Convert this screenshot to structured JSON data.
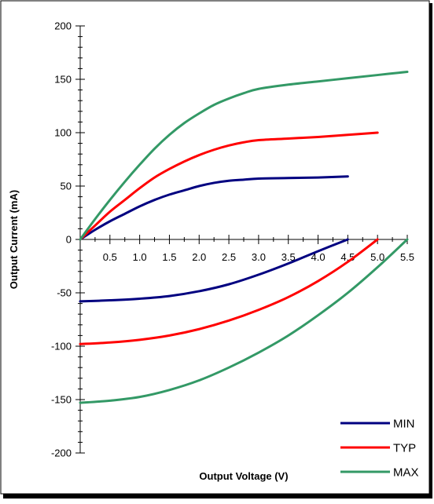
{
  "chart_data": {
    "type": "line",
    "title": "",
    "xlabel": "Output Voltage (V)",
    "ylabel": "Output Current (mA)",
    "xlim": [
      0,
      5.5
    ],
    "ylim": [
      -200,
      200
    ],
    "x_ticks": [
      0.5,
      1.0,
      1.5,
      2.0,
      2.5,
      3.0,
      3.5,
      4.0,
      4.5,
      5.0,
      5.5
    ],
    "x_tick_labels": [
      "0.5",
      "1.0",
      "1.5",
      "2.0",
      "2.5",
      "3.0",
      "3.5",
      "4.0",
      "4.5",
      "5.0",
      "5.5"
    ],
    "y_ticks": [
      200,
      150,
      100,
      50,
      0,
      -50,
      -100,
      -150,
      -200
    ],
    "y_tick_labels": [
      "200",
      "150",
      "100",
      "50",
      "0",
      "-50",
      "-100",
      "-150",
      "-200"
    ],
    "grid": false,
    "legend_position": "bottom-right",
    "series": [
      {
        "name": "MIN",
        "color": "#000080",
        "branches": [
          [
            [
              0,
              0
            ],
            [
              0.25,
              9
            ],
            [
              0.5,
              17
            ],
            [
              0.75,
              24
            ],
            [
              1.0,
              31
            ],
            [
              1.25,
              37
            ],
            [
              1.5,
              42
            ],
            [
              1.75,
              46
            ],
            [
              2.0,
              50
            ],
            [
              2.25,
              53
            ],
            [
              2.5,
              55
            ],
            [
              2.75,
              56
            ],
            [
              3.0,
              57
            ],
            [
              3.5,
              57.5
            ],
            [
              4.0,
              58
            ],
            [
              4.5,
              59
            ]
          ],
          [
            [
              0,
              -58
            ],
            [
              0.5,
              -57
            ],
            [
              1.0,
              -55.5
            ],
            [
              1.5,
              -53
            ],
            [
              2.0,
              -48.5
            ],
            [
              2.5,
              -42
            ],
            [
              3.0,
              -33
            ],
            [
              3.5,
              -22.5
            ],
            [
              4.0,
              -11
            ],
            [
              4.5,
              0
            ]
          ]
        ]
      },
      {
        "name": "TYP",
        "color": "#ff0000",
        "branches": [
          [
            [
              0,
              0
            ],
            [
              0.25,
              13
            ],
            [
              0.5,
              26
            ],
            [
              0.75,
              37
            ],
            [
              1.0,
              48
            ],
            [
              1.25,
              58
            ],
            [
              1.5,
              66
            ],
            [
              1.75,
              73
            ],
            [
              2.0,
              79
            ],
            [
              2.25,
              84
            ],
            [
              2.5,
              88
            ],
            [
              2.75,
              91
            ],
            [
              3.0,
              93
            ],
            [
              3.5,
              94.5
            ],
            [
              4.0,
              96
            ],
            [
              4.5,
              98
            ],
            [
              5.0,
              100
            ]
          ],
          [
            [
              0,
              -98
            ],
            [
              0.5,
              -96.5
            ],
            [
              1.0,
              -94
            ],
            [
              1.5,
              -90
            ],
            [
              2.0,
              -84
            ],
            [
              2.5,
              -76
            ],
            [
              3.0,
              -66
            ],
            [
              3.5,
              -54
            ],
            [
              4.0,
              -39
            ],
            [
              4.5,
              -21
            ],
            [
              5.0,
              0
            ]
          ]
        ]
      },
      {
        "name": "MAX",
        "color": "#339966",
        "branches": [
          [
            [
              0,
              0
            ],
            [
              0.25,
              19
            ],
            [
              0.5,
              37
            ],
            [
              0.75,
              54
            ],
            [
              1.0,
              70
            ],
            [
              1.25,
              85
            ],
            [
              1.5,
              98
            ],
            [
              1.75,
              109
            ],
            [
              2.0,
              118
            ],
            [
              2.25,
              126
            ],
            [
              2.5,
              132
            ],
            [
              2.75,
              137
            ],
            [
              3.0,
              141
            ],
            [
              3.5,
              145
            ],
            [
              4.0,
              148
            ],
            [
              4.5,
              151
            ],
            [
              5.0,
              154
            ],
            [
              5.5,
              157
            ]
          ],
          [
            [
              0,
              -153
            ],
            [
              0.5,
              -151
            ],
            [
              1.0,
              -147.5
            ],
            [
              1.5,
              -141
            ],
            [
              2.0,
              -132
            ],
            [
              2.5,
              -120
            ],
            [
              3.0,
              -106
            ],
            [
              3.5,
              -90
            ],
            [
              4.0,
              -71
            ],
            [
              4.5,
              -50
            ],
            [
              5.0,
              -26
            ],
            [
              5.5,
              0
            ]
          ]
        ]
      }
    ]
  }
}
